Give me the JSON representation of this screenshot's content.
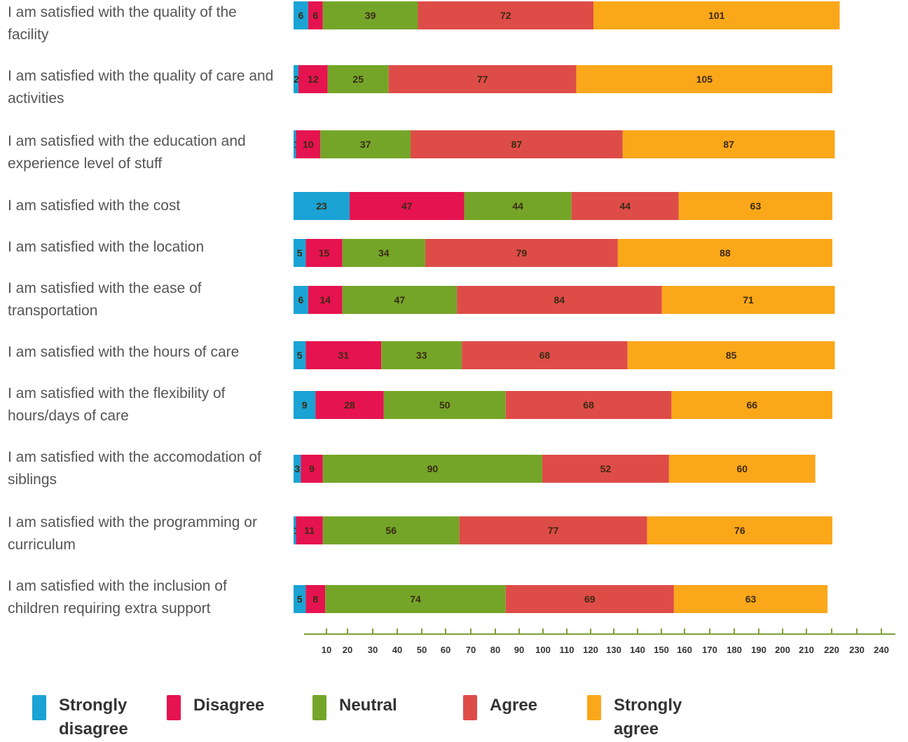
{
  "chart_data": {
    "type": "bar",
    "orientation": "horizontal",
    "stacked": true,
    "categories": [
      "I am satisfied with the quality of the facility",
      "I am satisfied with the quality of care and activities",
      "I am satisfied with the education and experience level of stuff",
      "I am satisfied with the cost",
      "I am satisfied with the location",
      "I am satisfied with the ease of transportation",
      "I am satisfied with the hours of care",
      "I am satisfied with the flexibility of hours/days of care",
      "I am satisfied with the accomodation of siblings",
      "I am satisfied with the programming or curriculum",
      "I am satisfied with the inclusion of children requiring extra support"
    ],
    "series": [
      {
        "name": "Strongly disagree",
        "color": "#1aa3d4",
        "values": [
          6,
          2,
          1,
          23,
          5,
          6,
          5,
          9,
          3,
          1,
          5
        ]
      },
      {
        "name": "Disagree",
        "color": "#e5134f",
        "values": [
          6,
          12,
          10,
          47,
          15,
          14,
          31,
          28,
          9,
          11,
          8
        ]
      },
      {
        "name": "Neutral",
        "color": "#74a528",
        "values": [
          39,
          25,
          37,
          44,
          34,
          47,
          33,
          50,
          90,
          56,
          74
        ]
      },
      {
        "name": "Agree",
        "color": "#de4c48",
        "values": [
          72,
          77,
          87,
          44,
          79,
          84,
          68,
          68,
          52,
          77,
          69
        ]
      },
      {
        "name": "Strongly agree",
        "color": "#fba71a",
        "values": [
          101,
          105,
          87,
          63,
          88,
          71,
          85,
          66,
          60,
          76,
          63
        ]
      }
    ],
    "xticks": [
      "10",
      "20",
      "30",
      "40",
      "50",
      "60",
      "70",
      "80",
      "90",
      "100",
      "110",
      "120",
      "130",
      "140",
      "150",
      "160",
      "170",
      "180",
      "190",
      "200",
      "210",
      "220",
      "230",
      "240"
    ],
    "xlabel": "",
    "ylabel": "",
    "legend_position": "bottom"
  },
  "legend": {
    "items": [
      {
        "label": "Strongly disagree",
        "color": "#1aa3d4"
      },
      {
        "label": "Disagree",
        "color": "#e5134f"
      },
      {
        "label": "Neutral",
        "color": "#74a528"
      },
      {
        "label": "Agree",
        "color": "#de4c48"
      },
      {
        "label": "Strongly agree",
        "color": "#fba71a"
      }
    ]
  }
}
